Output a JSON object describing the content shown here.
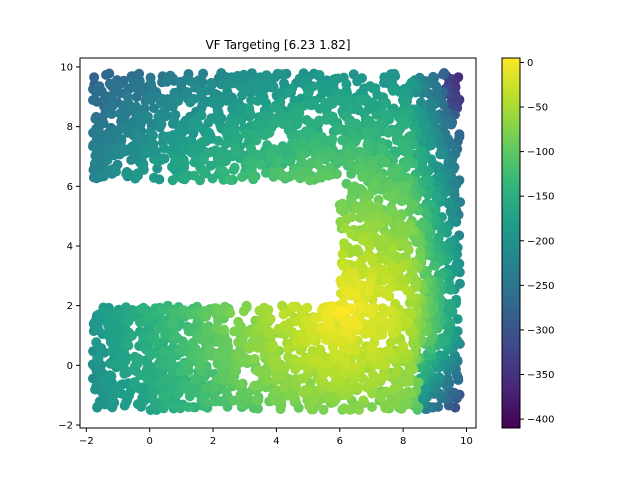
{
  "chart_data": {
    "type": "scatter",
    "title": "VF Targeting [6.23 1.82]",
    "xlabel": "",
    "ylabel": "",
    "xlim": [
      -2.2,
      10.3
    ],
    "ylim": [
      -2.1,
      10.3
    ],
    "xticks": [
      -2,
      0,
      2,
      4,
      6,
      8,
      10
    ],
    "yticks": [
      -2,
      0,
      2,
      4,
      6,
      8,
      10
    ],
    "grid": false,
    "target": [
      6.23,
      1.82
    ],
    "colorbar": {
      "colormap": "viridis",
      "range": [
        -410,
        5
      ],
      "ticks": [
        0,
        -50,
        -100,
        -150,
        -200,
        -250,
        -300,
        -350,
        -400
      ]
    },
    "regions": [
      {
        "name": "top-band",
        "x": [
          -1.8,
          9.6
        ],
        "y": [
          6.2,
          9.8
        ]
      },
      {
        "name": "right-band",
        "x": [
          6.0,
          9.8
        ],
        "y": [
          -1.5,
          9.8
        ]
      },
      {
        "name": "bottom-band",
        "x": [
          -1.8,
          9.8
        ],
        "y": [
          -1.5,
          2.0
        ]
      }
    ],
    "color_model": "value approx -sqrt of distance from target, deep purple near x=9.5,y=-1",
    "colors": {
      "viridis": [
        "#440154",
        "#482878",
        "#3e4989",
        "#31688e",
        "#26828e",
        "#1f9e89",
        "#35b779",
        "#6ece58",
        "#b5de2b",
        "#fde725"
      ]
    }
  }
}
